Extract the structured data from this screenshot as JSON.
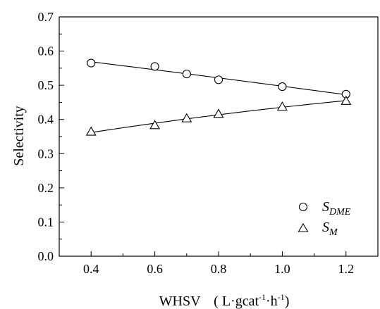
{
  "chart_data": {
    "type": "scatter",
    "title": "",
    "xlabel_main": "WHSV",
    "xlabel_unit_open": "( L·gcat",
    "xlabel_unit_exp1": "-1",
    "xlabel_unit_mid": "·h",
    "xlabel_unit_exp2": "-1",
    "xlabel_unit_close": ")",
    "ylabel": "Selectivity",
    "xlim": [
      0.3,
      1.3
    ],
    "ylim": [
      0.0,
      0.7
    ],
    "xticks": [
      "0.4",
      "0.6",
      "0.8",
      "1.0",
      "1.2"
    ],
    "xtick_values": [
      0.4,
      0.6,
      0.8,
      1.0,
      1.2
    ],
    "yticks": [
      "0.0",
      "0.1",
      "0.2",
      "0.3",
      "0.4",
      "0.5",
      "0.6",
      "0.7"
    ],
    "ytick_values": [
      0.0,
      0.1,
      0.2,
      0.3,
      0.4,
      0.5,
      0.6,
      0.7
    ],
    "grid": false,
    "legend_position": "bottom-right",
    "series": [
      {
        "name_main": "S",
        "name_sub": "DME",
        "marker": "circle",
        "fit_line": true,
        "x": [
          0.4,
          0.6,
          0.7,
          0.8,
          1.0,
          1.2
        ],
        "y": [
          0.565,
          0.555,
          0.533,
          0.516,
          0.496,
          0.474
        ]
      },
      {
        "name_main": "S",
        "name_sub": "M",
        "marker": "triangle",
        "fit_line": true,
        "x": [
          0.4,
          0.6,
          0.7,
          0.8,
          1.0,
          1.2
        ],
        "y": [
          0.364,
          0.383,
          0.403,
          0.416,
          0.437,
          0.454
        ]
      }
    ]
  }
}
